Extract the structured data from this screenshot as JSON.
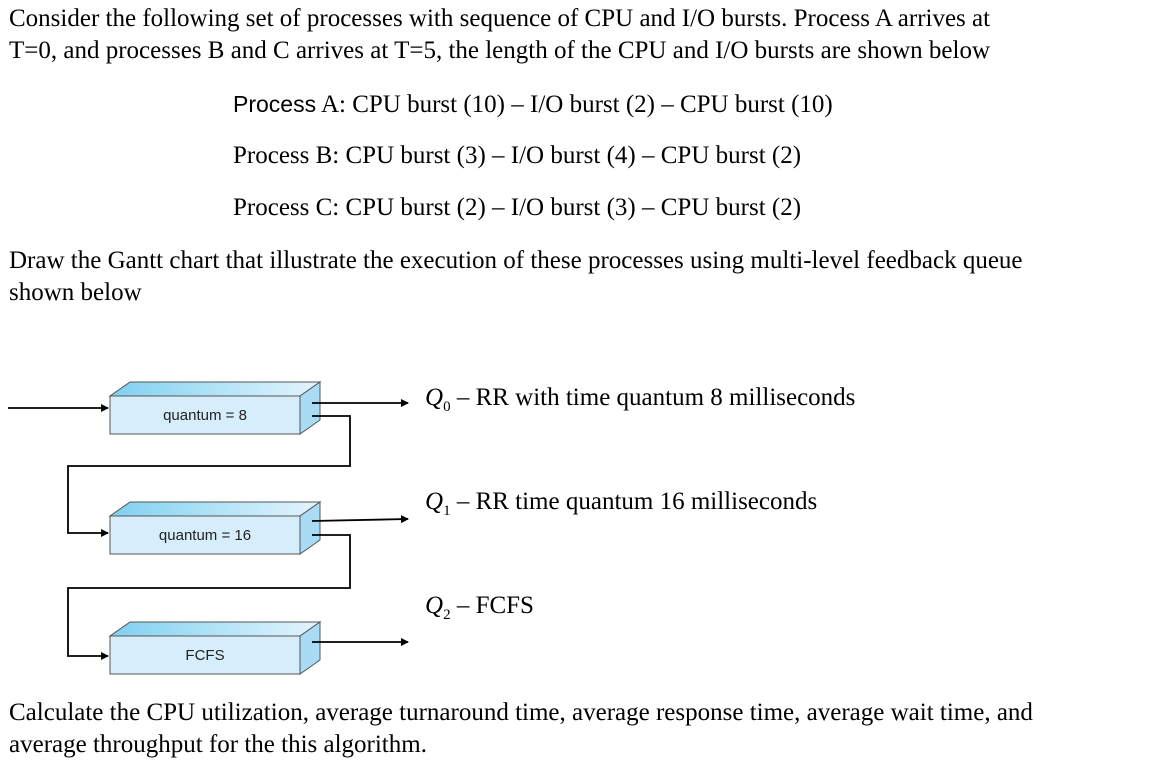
{
  "intro": {
    "line1": "Consider the following set of processes with sequence of CPU and I/O bursts. Process A arrives at",
    "line2": "T=0, and processes B and C arrives at T=5, the length of the CPU and I/O bursts are shown below"
  },
  "processes": [
    {
      "prefix": "Process",
      "rest": " A: CPU burst (10) – I/O burst (2) – CPU burst (10)"
    },
    {
      "prefix": "Process B:",
      "rest": " CPU burst (3) – I/O burst (4) – CPU burst (2)"
    },
    {
      "prefix": "Process C:",
      "rest": " CPU burst (2) – I/O burst (3) – CPU burst (2)"
    }
  ],
  "task": {
    "line1": "Draw the Gantt chart that illustrate the execution of these processes using multi-level feedback queue",
    "line2": "shown below"
  },
  "queues": [
    {
      "box_label": "quantum = 8",
      "name": "Q",
      "index": "0",
      "description": " – RR with time quantum 8 milliseconds"
    },
    {
      "box_label": "quantum = 16",
      "name": "Q",
      "index": "1",
      "description": " – RR time quantum 16 milliseconds"
    },
    {
      "box_label": "FCFS",
      "name": "Q",
      "index": "2",
      "description": " – FCFS"
    }
  ],
  "closing": {
    "line1": "Calculate the CPU utilization, average turnaround time, average response time, average wait time, and",
    "line2": "average throughput for the this algorithm."
  },
  "colors": {
    "box_face": "#d6eefb",
    "box_top_start": "#7fd0f0",
    "box_top_end": "#e4f5fd",
    "box_side": "#a9dcf4",
    "box_stroke": "#555555"
  }
}
